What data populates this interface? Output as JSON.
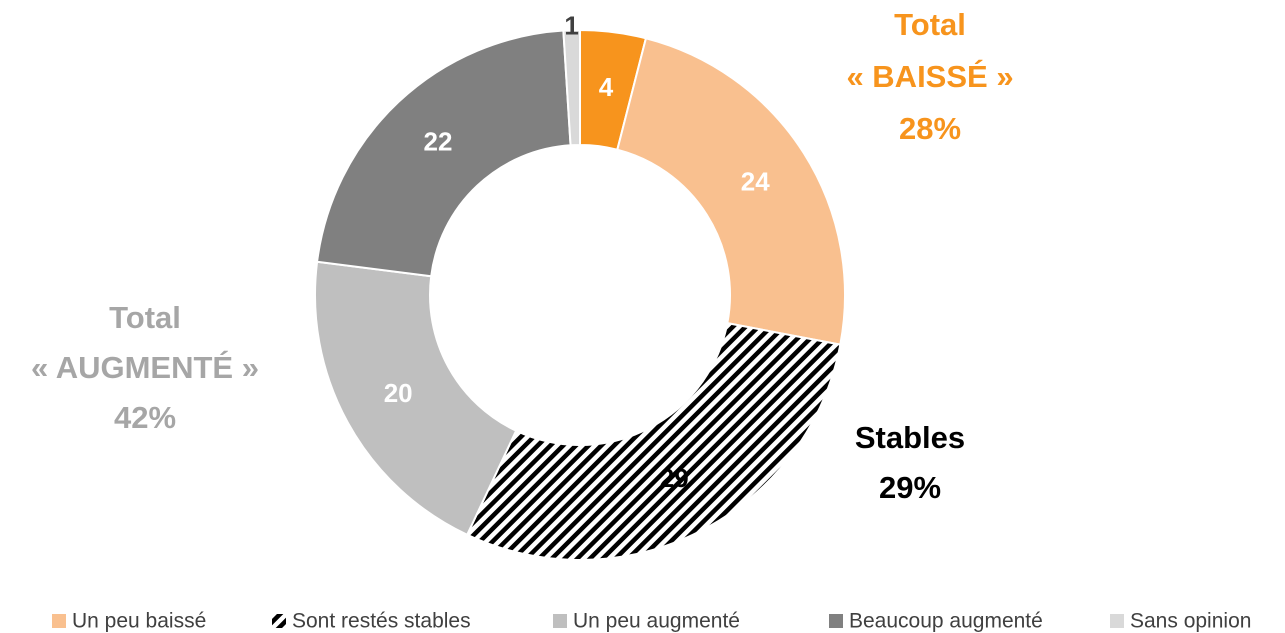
{
  "chart_data": {
    "type": "donut",
    "categories": [
      null,
      "Un peu baissé",
      "Sont restés stables",
      "Un peu augmenté",
      "Beaucoup augmenté",
      "Sans opinion"
    ],
    "values": [
      4,
      24,
      29,
      20,
      22,
      1
    ],
    "colors": [
      "#f7941d",
      "#f9c08f",
      "hatch",
      "#bfbfbf",
      "#808080",
      "#d9d9d9"
    ],
    "label_colors": [
      "#ffffff",
      "#ffffff",
      "#000000",
      "#ffffff",
      "#ffffff",
      "#404040"
    ],
    "annotations": [
      {
        "lines": [
          "Total",
          "« BAISSÉ »",
          "28%"
        ],
        "color": "#f7941d"
      },
      {
        "lines": [
          "Total",
          "« AUGMENTÉ »",
          "42%"
        ],
        "color": "#a6a6a6"
      },
      {
        "lines": [
          "Stables",
          "29%"
        ],
        "color": "#000000"
      }
    ]
  }
}
